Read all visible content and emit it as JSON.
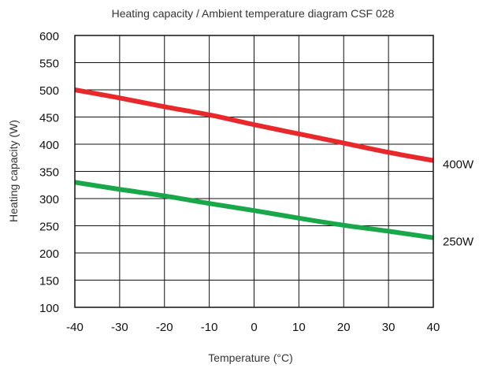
{
  "chart_data": {
    "type": "line",
    "title": "Heating capacity / Ambient temperature diagram CSF 028",
    "xlabel": "Temperature (°C)",
    "ylabel": "Heating capacity (W)",
    "xlim": [
      -40,
      40
    ],
    "ylim": [
      100,
      600
    ],
    "xticks": [
      -40,
      -30,
      -20,
      -10,
      0,
      10,
      20,
      30,
      40
    ],
    "yticks": [
      100,
      150,
      200,
      250,
      300,
      350,
      400,
      450,
      500,
      550,
      600
    ],
    "grid": true,
    "series": [
      {
        "name": "400W",
        "color": "#e8282b",
        "x": [
          -40,
          -30,
          -20,
          -10,
          0,
          10,
          20,
          30,
          40
        ],
        "values": [
          500,
          485,
          469,
          454,
          436,
          419,
          402,
          385,
          370
        ]
      },
      {
        "name": "250W",
        "color": "#18a84a",
        "x": [
          -40,
          -30,
          -20,
          -10,
          0,
          10,
          20,
          30,
          40
        ],
        "values": [
          330,
          317,
          305,
          291,
          278,
          264,
          251,
          240,
          228
        ]
      }
    ]
  }
}
